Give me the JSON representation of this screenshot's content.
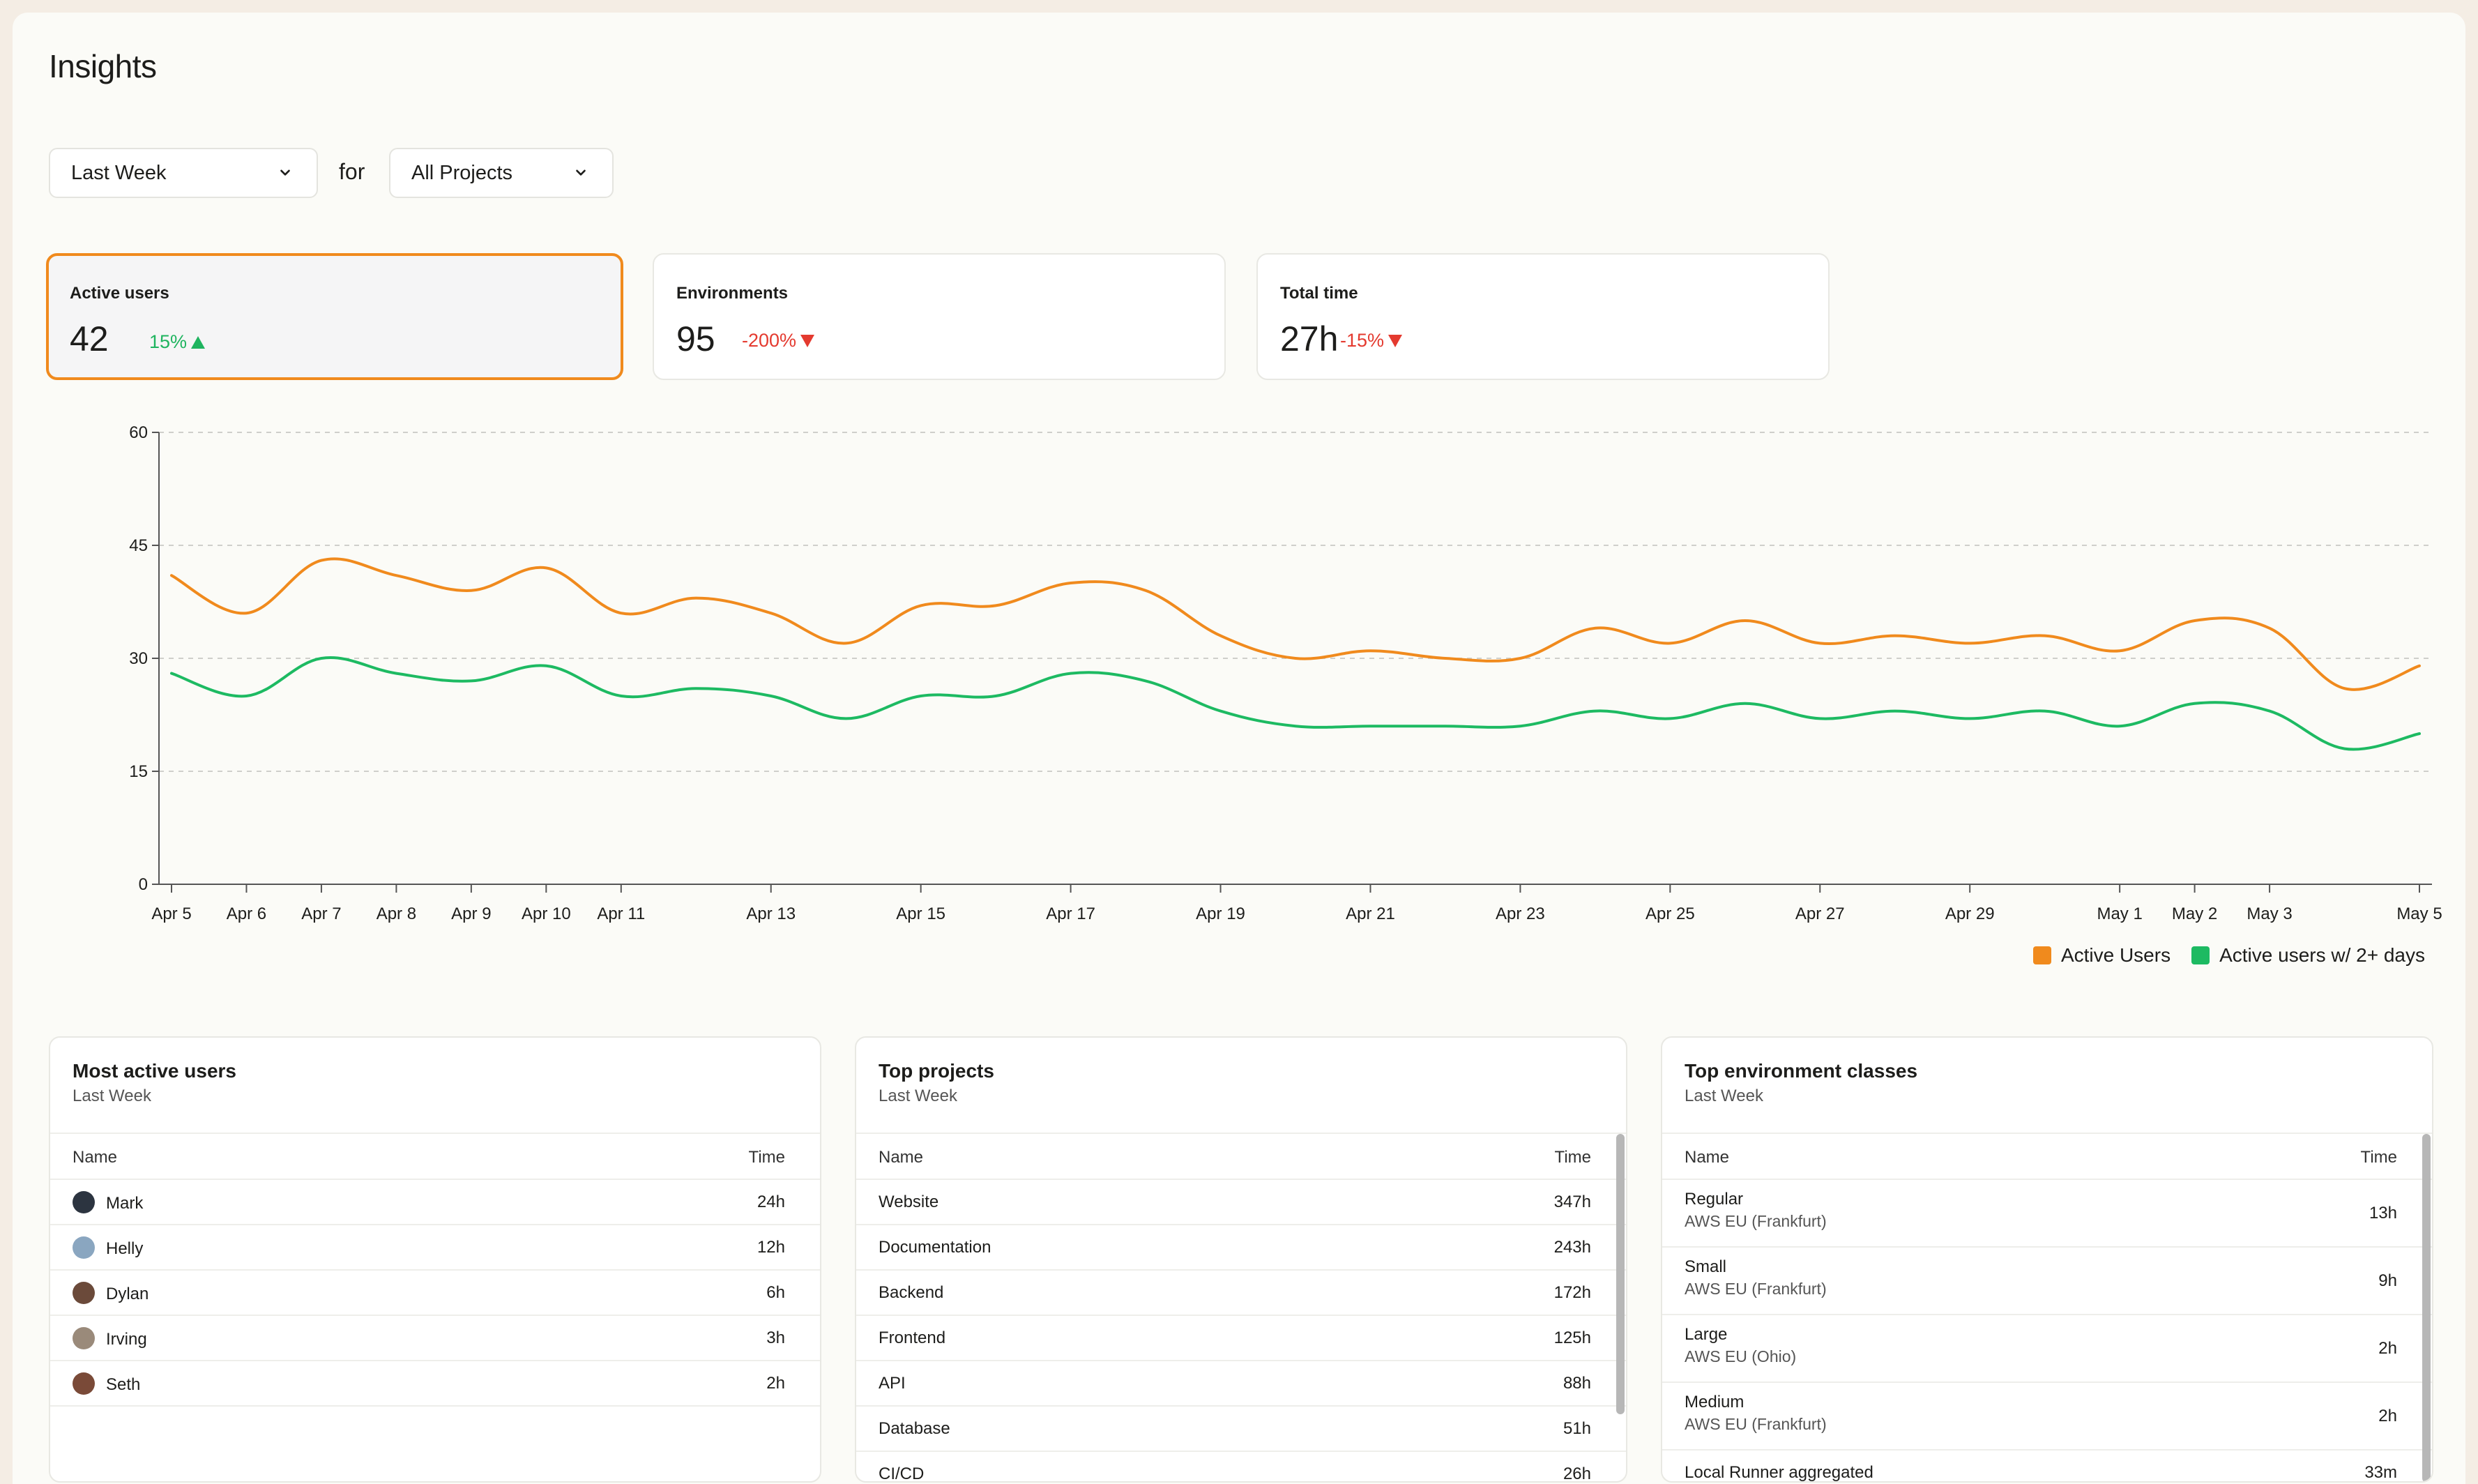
{
  "title": "Insights",
  "filters": {
    "period": "Last Week",
    "for_label": "for",
    "project": "All Projects"
  },
  "cards": [
    {
      "label": "Active users",
      "value": "42",
      "delta": "15%",
      "direction": "up"
    },
    {
      "label": "Environments",
      "value": "95",
      "delta": "-200%",
      "direction": "down"
    },
    {
      "label": "Total time",
      "value": "27h",
      "delta": "-15%",
      "direction": "down"
    }
  ],
  "chart_data": {
    "type": "line",
    "x": [
      "Apr 5",
      "Apr 6",
      "Apr 7",
      "Apr 8",
      "Apr 9",
      "Apr 10",
      "Apr 11",
      "Apr 12",
      "Apr 13",
      "Apr 14",
      "Apr 15",
      "Apr 16",
      "Apr 17",
      "Apr 18",
      "Apr 19",
      "Apr 20",
      "Apr 21",
      "Apr 22",
      "Apr 23",
      "Apr 24",
      "Apr 25",
      "Apr 26",
      "Apr 27",
      "Apr 28",
      "Apr 29",
      "Apr 30",
      "May 1",
      "May 2",
      "May 3",
      "May 4",
      "May 5"
    ],
    "x_tick_labels": [
      "Apr 5",
      "Apr 6",
      "Apr 7",
      "Apr 8",
      "Apr 9",
      "Apr 10",
      "Apr 11",
      "Apr 13",
      "Apr 15",
      "Apr 17",
      "Apr 19",
      "Apr 21",
      "Apr 23",
      "Apr 25",
      "Apr 27",
      "Apr 29",
      "May 1",
      "May 2",
      "May 3",
      "May 5"
    ],
    "y_ticks": [
      0,
      15,
      30,
      45,
      60
    ],
    "ylim": [
      0,
      60
    ],
    "grid": "horizontal dashed",
    "legend_position": "bottom-right",
    "series": [
      {
        "name": "Active Users",
        "color": "#f08a1d",
        "values": [
          41,
          36,
          43,
          41,
          39,
          42,
          36,
          38,
          36,
          32,
          37,
          37,
          40,
          39,
          33,
          30,
          31,
          30,
          30,
          34,
          32,
          35,
          32,
          33,
          32,
          33,
          31,
          35,
          34,
          26,
          29
        ]
      },
      {
        "name": "Active users w/ 2+ days",
        "color": "#1dba62",
        "values": [
          28,
          25,
          30,
          28,
          27,
          29,
          25,
          26,
          25,
          22,
          25,
          25,
          28,
          27,
          23,
          21,
          21,
          21,
          21,
          23,
          22,
          24,
          22,
          23,
          22,
          23,
          21,
          24,
          23,
          18,
          20
        ]
      }
    ]
  },
  "panels": {
    "users": {
      "title": "Most active users",
      "subtitle": "Last Week",
      "col_name": "Name",
      "col_time": "Time",
      "rows": [
        {
          "name": "Mark",
          "time": "24h",
          "avatar_color": "#2c3440"
        },
        {
          "name": "Helly",
          "time": "12h",
          "avatar_color": "#8aa6c0"
        },
        {
          "name": "Dylan",
          "time": "6h",
          "avatar_color": "#6b4a3a"
        },
        {
          "name": "Irving",
          "time": "3h",
          "avatar_color": "#9a8a7a"
        },
        {
          "name": "Seth",
          "time": "2h",
          "avatar_color": "#7a4a38"
        }
      ]
    },
    "projects": {
      "title": "Top projects",
      "subtitle": "Last Week",
      "col_name": "Name",
      "col_time": "Time",
      "rows": [
        {
          "name": "Website",
          "time": "347h"
        },
        {
          "name": "Documentation",
          "time": "243h"
        },
        {
          "name": "Backend",
          "time": "172h"
        },
        {
          "name": "Frontend",
          "time": "125h"
        },
        {
          "name": "API",
          "time": "88h"
        },
        {
          "name": "Database",
          "time": "51h"
        },
        {
          "name": "CI/CD",
          "time": "26h"
        }
      ]
    },
    "envs": {
      "title": "Top environment classes",
      "subtitle": "Last Week",
      "col_name": "Name",
      "col_time": "Time",
      "rows": [
        {
          "name": "Regular",
          "sub": "AWS EU (Frankfurt)",
          "time": "13h"
        },
        {
          "name": "Small",
          "sub": "AWS EU (Frankfurt)",
          "time": "9h"
        },
        {
          "name": "Large",
          "sub": "AWS EU (Ohio)",
          "time": "2h"
        },
        {
          "name": "Medium",
          "sub": "AWS EU (Frankfurt)",
          "time": "2h"
        },
        {
          "name": "Local Runner aggregated",
          "sub": "",
          "time": "33m"
        }
      ]
    }
  }
}
